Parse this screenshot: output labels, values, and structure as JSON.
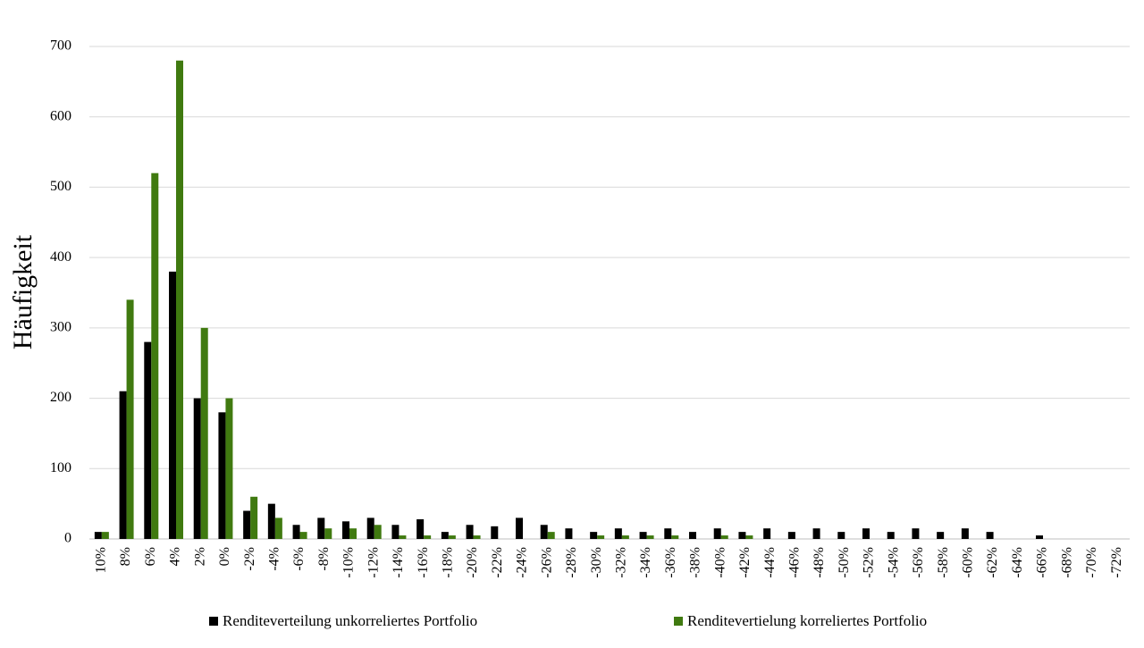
{
  "chart_data": {
    "type": "bar",
    "y_label": "Häufigkeit",
    "categories": [
      "10%",
      "8%",
      "6%",
      "4%",
      "2%",
      "0%",
      "-2%",
      "-4%",
      "-6%",
      "-8%",
      "-10%",
      "-12%",
      "-14%",
      "-16%",
      "-18%",
      "-20%",
      "-22%",
      "-24%",
      "-26%",
      "-28%",
      "-30%",
      "-32%",
      "-34%",
      "-36%",
      "-38%",
      "-40%",
      "-42%",
      "-44%",
      "-46%",
      "-48%",
      "-50%",
      "-52%",
      "-54%",
      "-56%",
      "-58%",
      "-60%",
      "-62%",
      "-64%",
      "-66%",
      "-68%",
      "-70%",
      "-72%"
    ],
    "series": [
      {
        "name": "Renditeverteilung unkorreliertes Portfolio",
        "color": "#000000",
        "values": [
          10,
          210,
          280,
          380,
          200,
          180,
          40,
          50,
          20,
          30,
          25,
          30,
          20,
          28,
          10,
          20,
          18,
          30,
          20,
          15,
          10,
          15,
          10,
          15,
          10,
          15,
          10,
          15,
          10,
          15,
          10,
          15,
          10,
          15,
          10,
          15,
          10,
          0,
          5,
          0,
          0,
          0
        ]
      },
      {
        "name": "Renditevertielung korreliertes Portfolio",
        "color": "#407a10",
        "values": [
          10,
          340,
          520,
          680,
          300,
          200,
          60,
          30,
          10,
          15,
          15,
          20,
          5,
          5,
          5,
          5,
          0,
          0,
          10,
          0,
          5,
          5,
          5,
          5,
          0,
          5,
          5,
          0,
          0,
          0,
          0,
          0,
          0,
          0,
          0,
          0,
          0,
          0,
          0,
          0,
          0,
          0
        ]
      }
    ],
    "ylim": [
      0,
      700
    ],
    "yticks": [
      0,
      100,
      200,
      300,
      400,
      500,
      600,
      700
    ],
    "grid": true,
    "legend": "bottom"
  }
}
